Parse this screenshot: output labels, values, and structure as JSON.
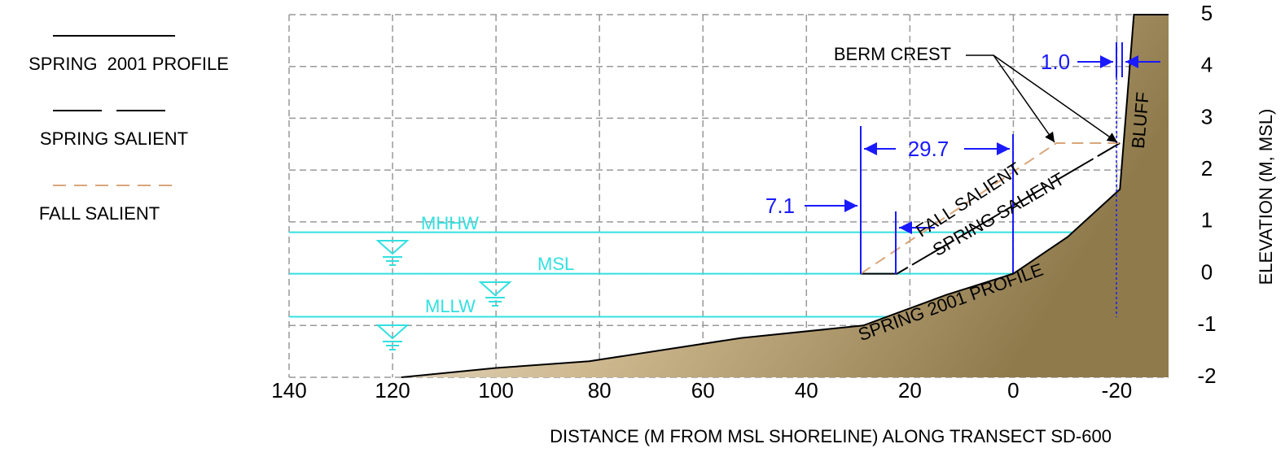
{
  "chart_data": {
    "type": "line",
    "xlabel": "DISTANCE (M FROM MSL SHORELINE) ALONG TRANSECT SD-600",
    "ylabel": "ELEVATION (M, MSL)",
    "xlim": [
      140,
      -30
    ],
    "ylim": [
      -2,
      5
    ],
    "xticks": [
      140,
      120,
      100,
      80,
      60,
      40,
      20,
      0,
      -20
    ],
    "yticks": [
      -2,
      -1,
      0,
      1,
      2,
      3,
      4,
      5
    ],
    "grid": true,
    "series": [
      {
        "name": "SPRING  2001 PROFILE",
        "color": "#000000",
        "dash": "solid",
        "fill_color": "#8f7a4c",
        "x": [
          118.3,
          100,
          82,
          52.6,
          29,
          13,
          0,
          -10.5,
          -20.6,
          -23.3,
          -30
        ],
        "values": [
          -2,
          -1.82,
          -1.69,
          -1.24,
          -1.0,
          -0.41,
          0,
          0.71,
          1.63,
          5,
          5
        ]
      },
      {
        "name": "SPRING SALIENT",
        "color": "#000000",
        "dash": "long",
        "x": [
          29.5,
          22.5,
          -20.6
        ],
        "values": [
          0,
          0,
          2.52
        ]
      },
      {
        "name": "FALL SALIENT",
        "color": "#d9a679",
        "dash": "short",
        "x": [
          29.5,
          -8.3,
          -20.6
        ],
        "values": [
          0,
          2.52,
          2.52
        ]
      }
    ],
    "reference_lines": [
      {
        "label": "MHHW",
        "value": 0.8,
        "color": "#33e0e0"
      },
      {
        "label": "MSL",
        "value": 0,
        "color": "#33e0e0"
      },
      {
        "label": "MLLW",
        "value": -0.83,
        "color": "#33e0e0"
      }
    ],
    "annotations": {
      "berm_crest": "BERM CREST",
      "bluff": "BLUFF",
      "dimensions": [
        {
          "value": 29.7
        },
        {
          "value": 7.1
        },
        {
          "value": 1.0,
          "label": "1.0"
        }
      ]
    }
  }
}
